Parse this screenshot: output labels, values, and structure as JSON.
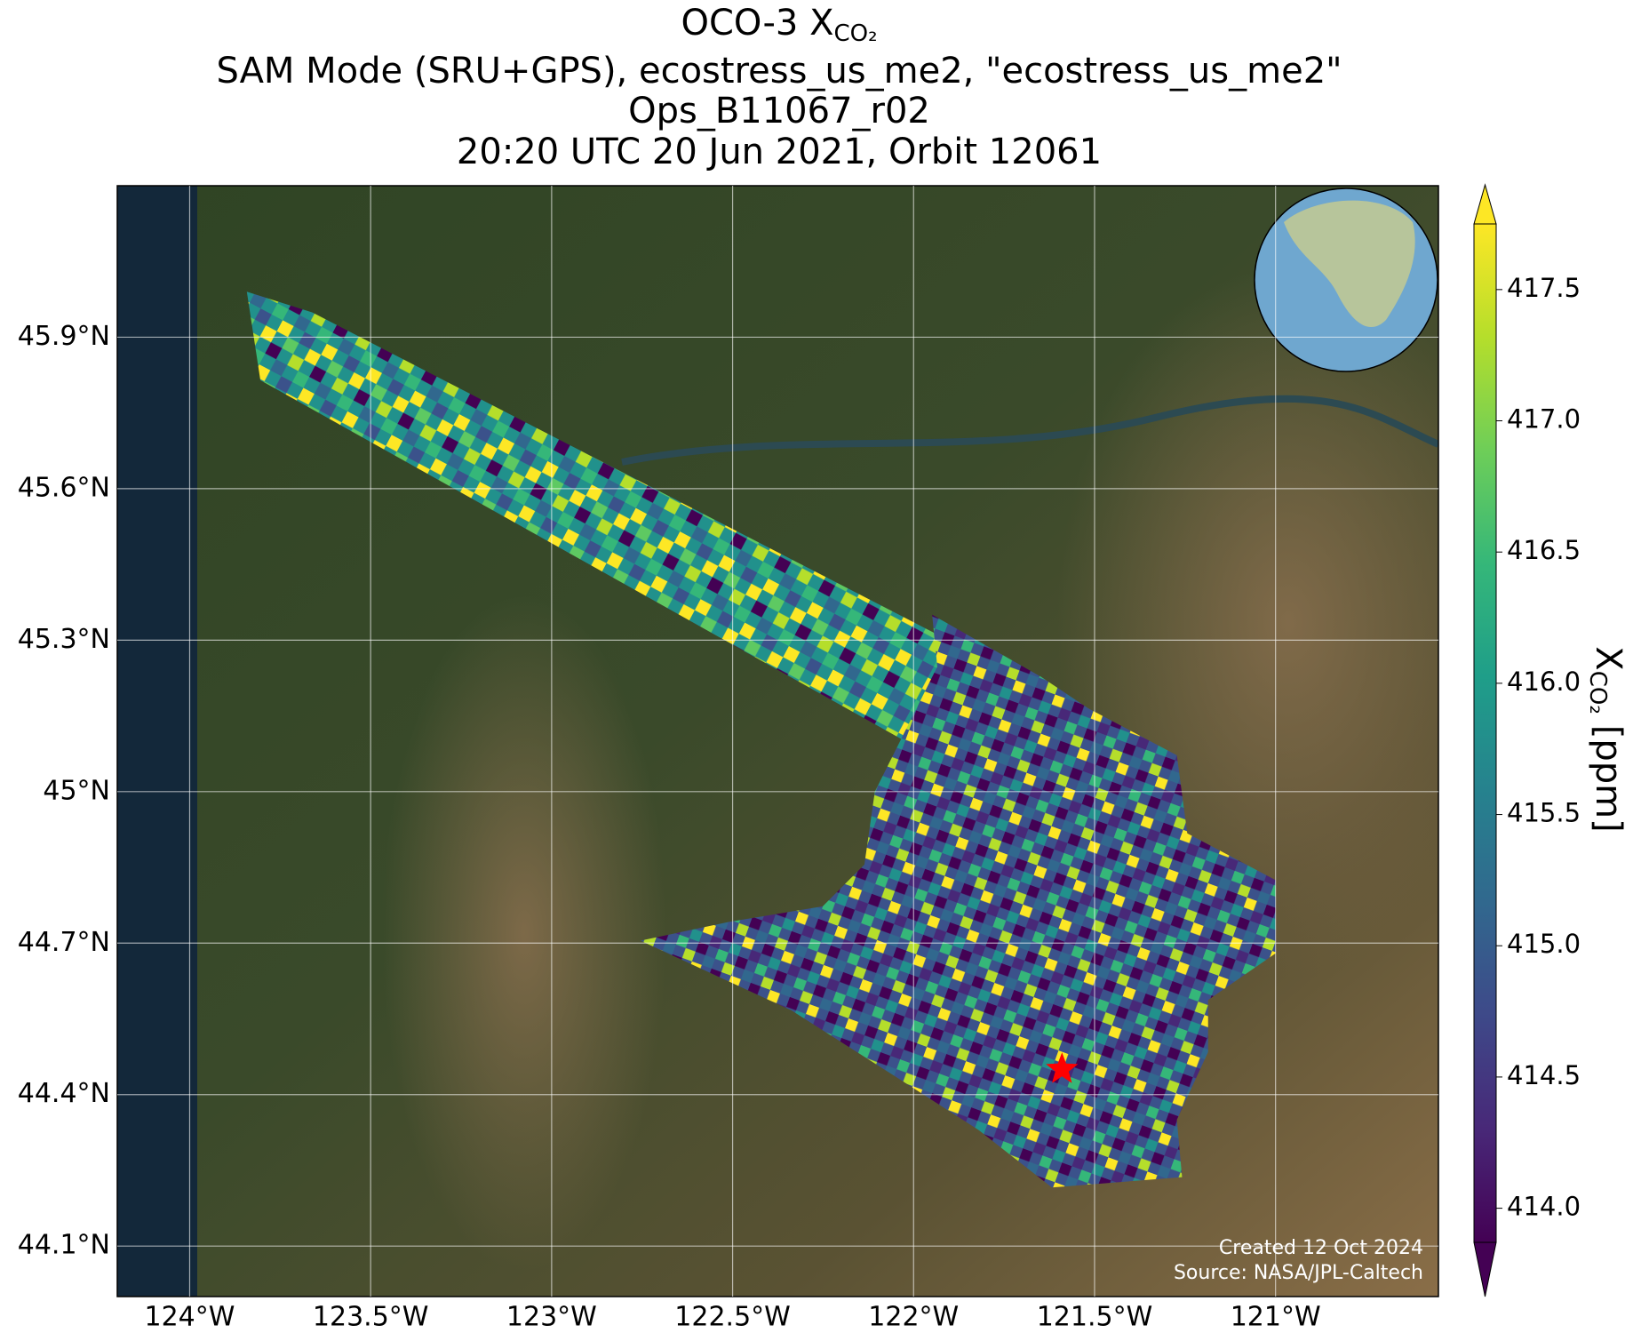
{
  "chart_data": {
    "type": "map",
    "title": "OCO-3 X",
    "title_subscript": "CO₂",
    "subtitle": [
      "SAM Mode (SRU+GPS), ecostress_us_me2, \"ecostress_us_me2\"",
      "Ops_B11067_r02",
      "20:20 UTC 20 Jun 2021, Orbit 12061"
    ],
    "xlim": [
      -124.2,
      -120.55
    ],
    "ylim": [
      44.0,
      46.2
    ],
    "xticks": [
      {
        "value": -124,
        "label": "124°W"
      },
      {
        "value": -123.5,
        "label": "123.5°W"
      },
      {
        "value": -123,
        "label": "123°W"
      },
      {
        "value": -122.5,
        "label": "122.5°W"
      },
      {
        "value": -122,
        "label": "122°W"
      },
      {
        "value": -121.5,
        "label": "121.5°W"
      },
      {
        "value": -121,
        "label": "121°W"
      }
    ],
    "yticks": [
      {
        "value": 44.1,
        "label": "44.1°N"
      },
      {
        "value": 44.4,
        "label": "44.4°N"
      },
      {
        "value": 44.7,
        "label": "44.7°N"
      },
      {
        "value": 45,
        "label": "45°N"
      },
      {
        "value": 45.3,
        "label": "45.3°N"
      },
      {
        "value": 45.6,
        "label": "45.6°N"
      },
      {
        "value": 45.9,
        "label": "45.9°N"
      }
    ],
    "grid": true,
    "site": {
      "lon": -121.59,
      "lat": 44.45,
      "color": "#ff0000"
    },
    "colormap": "viridis",
    "clim": [
      413.87,
      417.75
    ],
    "cticks": [
      {
        "value": 414,
        "label": "414.0"
      },
      {
        "value": 414.5,
        "label": "414.5"
      },
      {
        "value": 415,
        "label": "415.0"
      },
      {
        "value": 415.5,
        "label": "415.5"
      },
      {
        "value": 416,
        "label": "416.0"
      },
      {
        "value": 416.5,
        "label": "416.5"
      },
      {
        "value": 417,
        "label": "417.0"
      },
      {
        "value": 417.5,
        "label": "417.5"
      }
    ],
    "colorbar_label": {
      "symbol": "X",
      "subscript": "CO₂",
      "unit": "[ppm]"
    },
    "credits": [
      "Created 12 Oct 2024",
      "Source: NASA/JPL-Caltech"
    ]
  }
}
